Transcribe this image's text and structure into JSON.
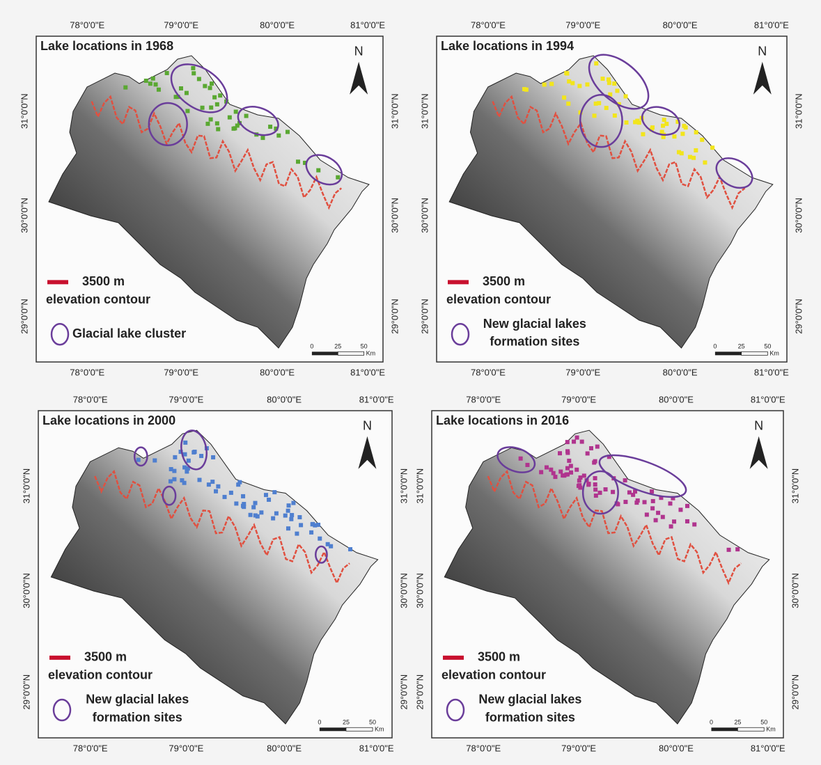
{
  "panels": [
    {
      "title": "Lake locations in 1968",
      "north": "N",
      "lon_top": [
        "78°0'0\"E",
        "79°0'0\"E",
        "80°0'0\"E",
        "81°0'0\"E"
      ],
      "lon_bottom": [
        "78°0'0\"E",
        "79°0'0\"E",
        "80°0'0\"E",
        "81°0'0\"E"
      ],
      "lat_left": [
        "31°0'0\"N",
        "30°0'0\"N",
        "29°0'0\"N"
      ],
      "lat_right": [
        "31°0'0\"N",
        "30°0'0\"N",
        "29°0'0\"N"
      ],
      "legend": {
        "contour_value": "3500 m",
        "contour_label": "elevation contour",
        "ellipse_label": [
          "Glacial lake cluster"
        ]
      },
      "scale": [
        "0",
        "25",
        "50",
        "Km"
      ]
    },
    {
      "title": "Lake locations in 1994",
      "north": "N",
      "lon_top": [
        "78°0'0\"E",
        "79°0'0\"E",
        "80°0'0\"E",
        "81°0'0\"E"
      ],
      "lon_bottom": [
        "78°0'0\"E",
        "79°0'0\"E",
        "80°0'0\"E",
        "81°0'0\"E"
      ],
      "lat_left": [
        "31°0'0\"N",
        "30°0'0\"N",
        "29°0'0\"N"
      ],
      "lat_right": [
        "31°0'0\"N",
        "30°0'0\"N",
        "29°0'0\"N"
      ],
      "legend": {
        "contour_value": "3500 m",
        "contour_label": "elevation contour",
        "ellipse_label": [
          "New glacial lakes",
          "formation sites"
        ]
      },
      "scale": [
        "0",
        "25",
        "50",
        "Km"
      ]
    },
    {
      "title": "Lake locations in 2000",
      "north": "N",
      "lon_top": [
        "78°0'0\"E",
        "79°0'0\"E",
        "80°0'0\"E",
        "81°0'0\"E"
      ],
      "lon_bottom": [
        "78°0'0\"E",
        "79°0'0\"E",
        "80°0'0\"E",
        "81°0'0\"E"
      ],
      "lat_left": [
        "31°0'0\"N",
        "30°0'0\"N",
        "29°0'0\"N"
      ],
      "lat_right": [
        "31°0'0\"N",
        "30°0'0\"N",
        "29°0'0\"N"
      ],
      "legend": {
        "contour_value": "3500 m",
        "contour_label": "elevation contour",
        "ellipse_label": [
          "New glacial lakes",
          "formation sites"
        ]
      },
      "scale": [
        "0",
        "25",
        "50",
        "Km"
      ]
    },
    {
      "title": "Lake locations in 2016",
      "north": "N",
      "lon_top": [
        "78°0'0\"E",
        "79°0'0\"E",
        "80°0'0\"E",
        "81°0'0\"E"
      ],
      "lon_bottom": [
        "78°0'0\"E",
        "79°0'0\"E",
        "80°0'0\"E",
        "81°0'0\"E"
      ],
      "lat_left": [
        "31°0'0\"N",
        "30°0'0\"N",
        "29°0'0\"N"
      ],
      "lat_right": [
        "31°0'0\"N",
        "30°0'0\"N",
        "29°0'0\"N"
      ],
      "legend": {
        "contour_value": "3500 m",
        "contour_label": "elevation contour",
        "ellipse_label": [
          "New glacial lakes",
          "formation sites"
        ]
      },
      "scale": [
        "0",
        "25",
        "50",
        "Km"
      ]
    }
  ]
}
